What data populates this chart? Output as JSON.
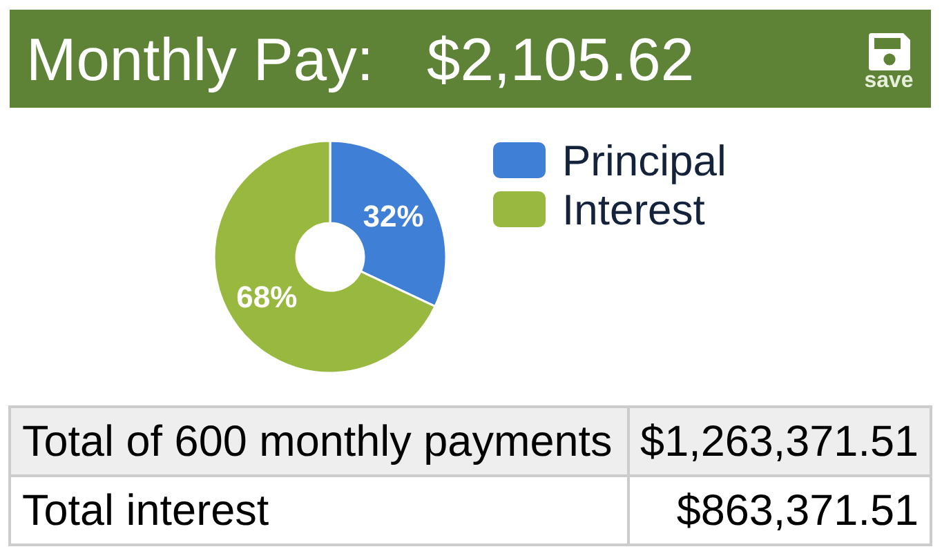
{
  "chart_data": {
    "type": "donut",
    "title": "Monthly Pay:",
    "subtitle": "$2,105.62",
    "categories": [
      "Principal",
      "Interest"
    ],
    "values": [
      32,
      68
    ],
    "colors": [
      "#3f7fd6",
      "#99b840"
    ],
    "value_labels": [
      "32%",
      "68%"
    ],
    "legend": "right",
    "annotations": [
      "save",
      "Total of 600 monthly payments",
      "$1,263,371.51",
      "Total interest",
      "$863,371.51"
    ]
  }
}
